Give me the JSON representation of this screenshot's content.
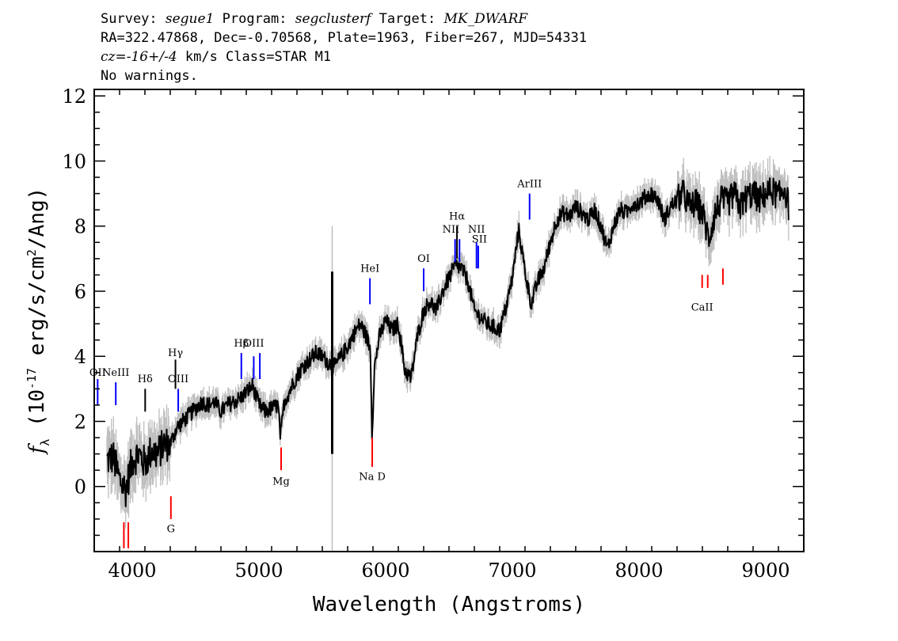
{
  "header": {
    "survey_prefix": "Survey: ",
    "survey": "segue1",
    "program_prefix": " Program: ",
    "program": "segclusterf",
    "target_prefix": " Target: ",
    "target": "MK_DWARF",
    "line2": "RA=322.47868, Dec=-0.70568, Plate=1963, Fiber=267, MJD=54331",
    "cz": "cz=-16+/-4",
    "line3_rest": " km/s Class=STAR M1",
    "line4": "No warnings."
  },
  "chart_data": {
    "type": "line",
    "xlabel": "Wavelength (Angstroms)",
    "ylabel": "f_λ (10^-17 erg/s/cm^2/Ang)",
    "xlim": [
      3700,
      9300
    ],
    "ylim": [
      -2,
      12.2
    ],
    "xticks": [
      4000,
      5000,
      6000,
      7000,
      8000,
      9000
    ],
    "yticks": [
      0,
      2,
      4,
      6,
      8,
      10,
      12
    ],
    "colors": {
      "flux": "#000000",
      "error": "#bebebe",
      "emission": "#0000ff",
      "absorption": "#ff0000",
      "balmer": "#000000"
    },
    "spectrum": {
      "x": [
        3800,
        3850,
        3900,
        3950,
        4000,
        4050,
        4100,
        4150,
        4200,
        4250,
        4300,
        4350,
        4400,
        4450,
        4500,
        4550,
        4600,
        4650,
        4700,
        4750,
        4800,
        4850,
        4900,
        4950,
        5000,
        5050,
        5100,
        5150,
        5170,
        5200,
        5250,
        5300,
        5350,
        5400,
        5450,
        5500,
        5550,
        5600,
        5650,
        5700,
        5750,
        5800,
        5850,
        5880,
        5893,
        5910,
        5950,
        6000,
        6050,
        6100,
        6150,
        6200,
        6250,
        6300,
        6350,
        6400,
        6450,
        6500,
        6550,
        6600,
        6650,
        6700,
        6750,
        6800,
        6850,
        6900,
        6950,
        7000,
        7050,
        7100,
        7150,
        7200,
        7250,
        7300,
        7350,
        7400,
        7450,
        7500,
        7550,
        7600,
        7650,
        7700,
        7750,
        7800,
        7850,
        7900,
        7950,
        8000,
        8050,
        8100,
        8150,
        8200,
        8250,
        8300,
        8350,
        8400,
        8450,
        8500,
        8550,
        8600,
        8650,
        8700,
        8750,
        8800,
        8850,
        8900,
        8950,
        9000,
        9050,
        9100,
        9150,
        9180
      ],
      "y": [
        0.8,
        0.9,
        0.2,
        -0.1,
        0.8,
        1.0,
        0.7,
        1.1,
        1.0,
        1.3,
        1.3,
        1.8,
        2.0,
        2.2,
        2.4,
        2.6,
        2.5,
        2.6,
        2.3,
        2.5,
        2.6,
        2.7,
        2.9,
        3.1,
        2.5,
        2.3,
        2.4,
        2.5,
        1.5,
        2.6,
        3.0,
        3.4,
        3.7,
        3.9,
        4.1,
        4.0,
        3.8,
        3.7,
        4.0,
        4.3,
        4.7,
        5.0,
        4.6,
        4.2,
        1.5,
        3.6,
        4.6,
        5.1,
        4.8,
        5.0,
        3.6,
        3.3,
        4.6,
        5.4,
        5.7,
        5.4,
        6.0,
        6.4,
        6.8,
        6.7,
        6.3,
        5.4,
        5.2,
        5.0,
        4.9,
        4.8,
        5.5,
        6.4,
        7.9,
        6.6,
        5.6,
        6.3,
        6.7,
        7.5,
        8.2,
        8.4,
        8.3,
        8.6,
        8.4,
        8.2,
        8.5,
        8.0,
        7.3,
        8.0,
        8.5,
        8.4,
        8.7,
        8.7,
        8.9,
        9.0,
        8.8,
        8.2,
        8.6,
        8.8,
        9.0,
        8.6,
        8.7,
        8.4,
        7.6,
        8.4,
        8.8,
        8.7,
        9.0,
        8.6,
        8.9,
        9.0,
        8.8,
        9.0,
        9.1,
        8.9,
        9.2,
        8.6
      ]
    },
    "lines": [
      {
        "label": "OII",
        "wave": 3727,
        "y1": 2.5,
        "y2": 3.3,
        "kind": "emission",
        "label_x": 3727,
        "label_y": 3.4
      },
      {
        "label": "NeIII",
        "wave": 3870,
        "y1": 2.5,
        "y2": 3.2,
        "kind": "emission",
        "label_x": 3870,
        "label_y": 3.4
      },
      {
        "label": "Hδ",
        "wave": 4102,
        "y1": 2.3,
        "y2": 3.0,
        "kind": "balmer",
        "label_x": 4102,
        "label_y": 3.2
      },
      {
        "label": "Hγ",
        "wave": 4341,
        "y1": 3.0,
        "y2": 3.9,
        "kind": "balmer",
        "label_x": 4341,
        "label_y": 4.0
      },
      {
        "label": "OIII",
        "wave": 4363,
        "y1": 2.3,
        "y2": 3.0,
        "kind": "emission",
        "label_x": 4363,
        "label_y": 3.2
      },
      {
        "label": "Hβ",
        "wave": 4861,
        "y1": 3.3,
        "y2": 4.1,
        "kind": "emission",
        "label_x": 4861,
        "label_y": 4.3
      },
      {
        "label": "OIII",
        "wave": 4959,
        "y1": 3.3,
        "y2": 4.0,
        "kind": "emission",
        "label_x": 4959,
        "label_y": 4.3
      },
      {
        "label": "",
        "wave": 5007,
        "y1": 3.3,
        "y2": 4.1,
        "kind": "emission",
        "label_x": 5007,
        "label_y": 4.3
      },
      {
        "label": "HeI",
        "wave": 5876,
        "y1": 5.6,
        "y2": 6.4,
        "kind": "emission",
        "label_x": 5876,
        "label_y": 6.6
      },
      {
        "label": "OI",
        "wave": 6300,
        "y1": 6.0,
        "y2": 6.7,
        "kind": "emission",
        "label_x": 6300,
        "label_y": 6.9
      },
      {
        "label": "NII",
        "wave": 6548,
        "y1": 6.9,
        "y2": 7.6,
        "kind": "emission",
        "label_x": 6515,
        "label_y": 7.8
      },
      {
        "label": "Hα",
        "wave": 6563,
        "y1": 7.0,
        "y2": 8.0,
        "kind": "balmer",
        "label_x": 6563,
        "label_y": 8.2
      },
      {
        "label": "",
        "wave": 6583,
        "y1": 6.9,
        "y2": 7.6,
        "kind": "emission",
        "label_x": 6583,
        "label_y": 7.8
      },
      {
        "label": "NII",
        "wave": 6717,
        "y1": 6.7,
        "y2": 7.5,
        "kind": "emission",
        "label_x": 6717,
        "label_y": 7.8
      },
      {
        "label": "SII",
        "wave": 6731,
        "y1": 6.7,
        "y2": 7.4,
        "kind": "emission",
        "label_x": 6740,
        "label_y": 7.5
      },
      {
        "label": "ArIII",
        "wave": 7136,
        "y1": 8.2,
        "y2": 9.0,
        "kind": "emission",
        "label_x": 7136,
        "label_y": 9.2
      },
      {
        "label": "",
        "wave": 3934,
        "y1": -1.9,
        "y2": -1.1,
        "kind": "absorption",
        "label_x": 3950,
        "label_y": -2.2
      },
      {
        "label": "",
        "wave": 3969,
        "y1": -1.9,
        "y2": -1.1,
        "kind": "absorption",
        "label_x": 3969,
        "label_y": -2.2
      },
      {
        "label": "G",
        "wave": 4305,
        "y1": -1.0,
        "y2": -0.3,
        "kind": "absorption",
        "label_x": 4305,
        "label_y": -1.4
      },
      {
        "label": "Mg",
        "wave": 5175,
        "y1": 0.5,
        "y2": 1.2,
        "kind": "absorption",
        "label_x": 5175,
        "label_y": 0.05
      },
      {
        "label": "Na D",
        "wave": 5894,
        "y1": 0.6,
        "y2": 1.5,
        "kind": "absorption",
        "label_x": 5894,
        "label_y": 0.2
      },
      {
        "label": "CaII",
        "wave": 8498,
        "y1": 6.1,
        "y2": 6.5,
        "kind": "absorption",
        "label_x": 8498,
        "label_y": 5.4
      },
      {
        "label": "",
        "wave": 8542,
        "y1": 6.1,
        "y2": 6.5,
        "kind": "absorption",
        "label_x": 8542,
        "label_y": 5.4
      },
      {
        "label": "",
        "wave": 8662,
        "y1": 6.2,
        "y2": 6.7,
        "kind": "absorption",
        "label_x": 8662,
        "label_y": 5.4
      }
    ]
  }
}
